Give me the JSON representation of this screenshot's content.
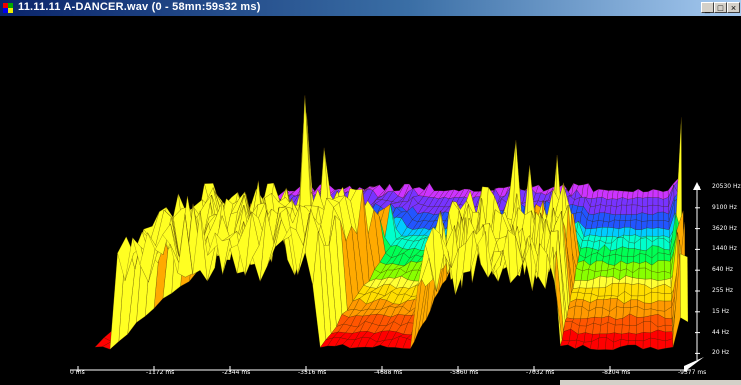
{
  "window": {
    "title": "11.11.11 A-DANCER.wav (0 - 58mn:59s32 ms)",
    "controls": {
      "minimize": "_",
      "maximize": "□",
      "close": "×"
    }
  },
  "spectrogram": {
    "frequency_axis": {
      "labels": [
        "20530 Hz",
        "9100 Hz",
        "3620 Hz",
        "1440 Hz",
        "640 Hz",
        "255 Hz",
        "15 Hz",
        "44 Hz",
        "20 Hz"
      ]
    },
    "time_axis": {
      "labels": [
        "0 ms",
        "-1172 ms",
        "-2344 ms",
        "-3516 ms",
        "-4688 ms",
        "-5860 ms",
        "-7032 ms",
        "-8204 ms",
        "-9377 ms"
      ]
    },
    "color_scale": [
      "#ff0000",
      "#ff8800",
      "#ffff00",
      "#00ff44",
      "#00ffff",
      "#3333ff",
      "#cc33ff"
    ]
  }
}
